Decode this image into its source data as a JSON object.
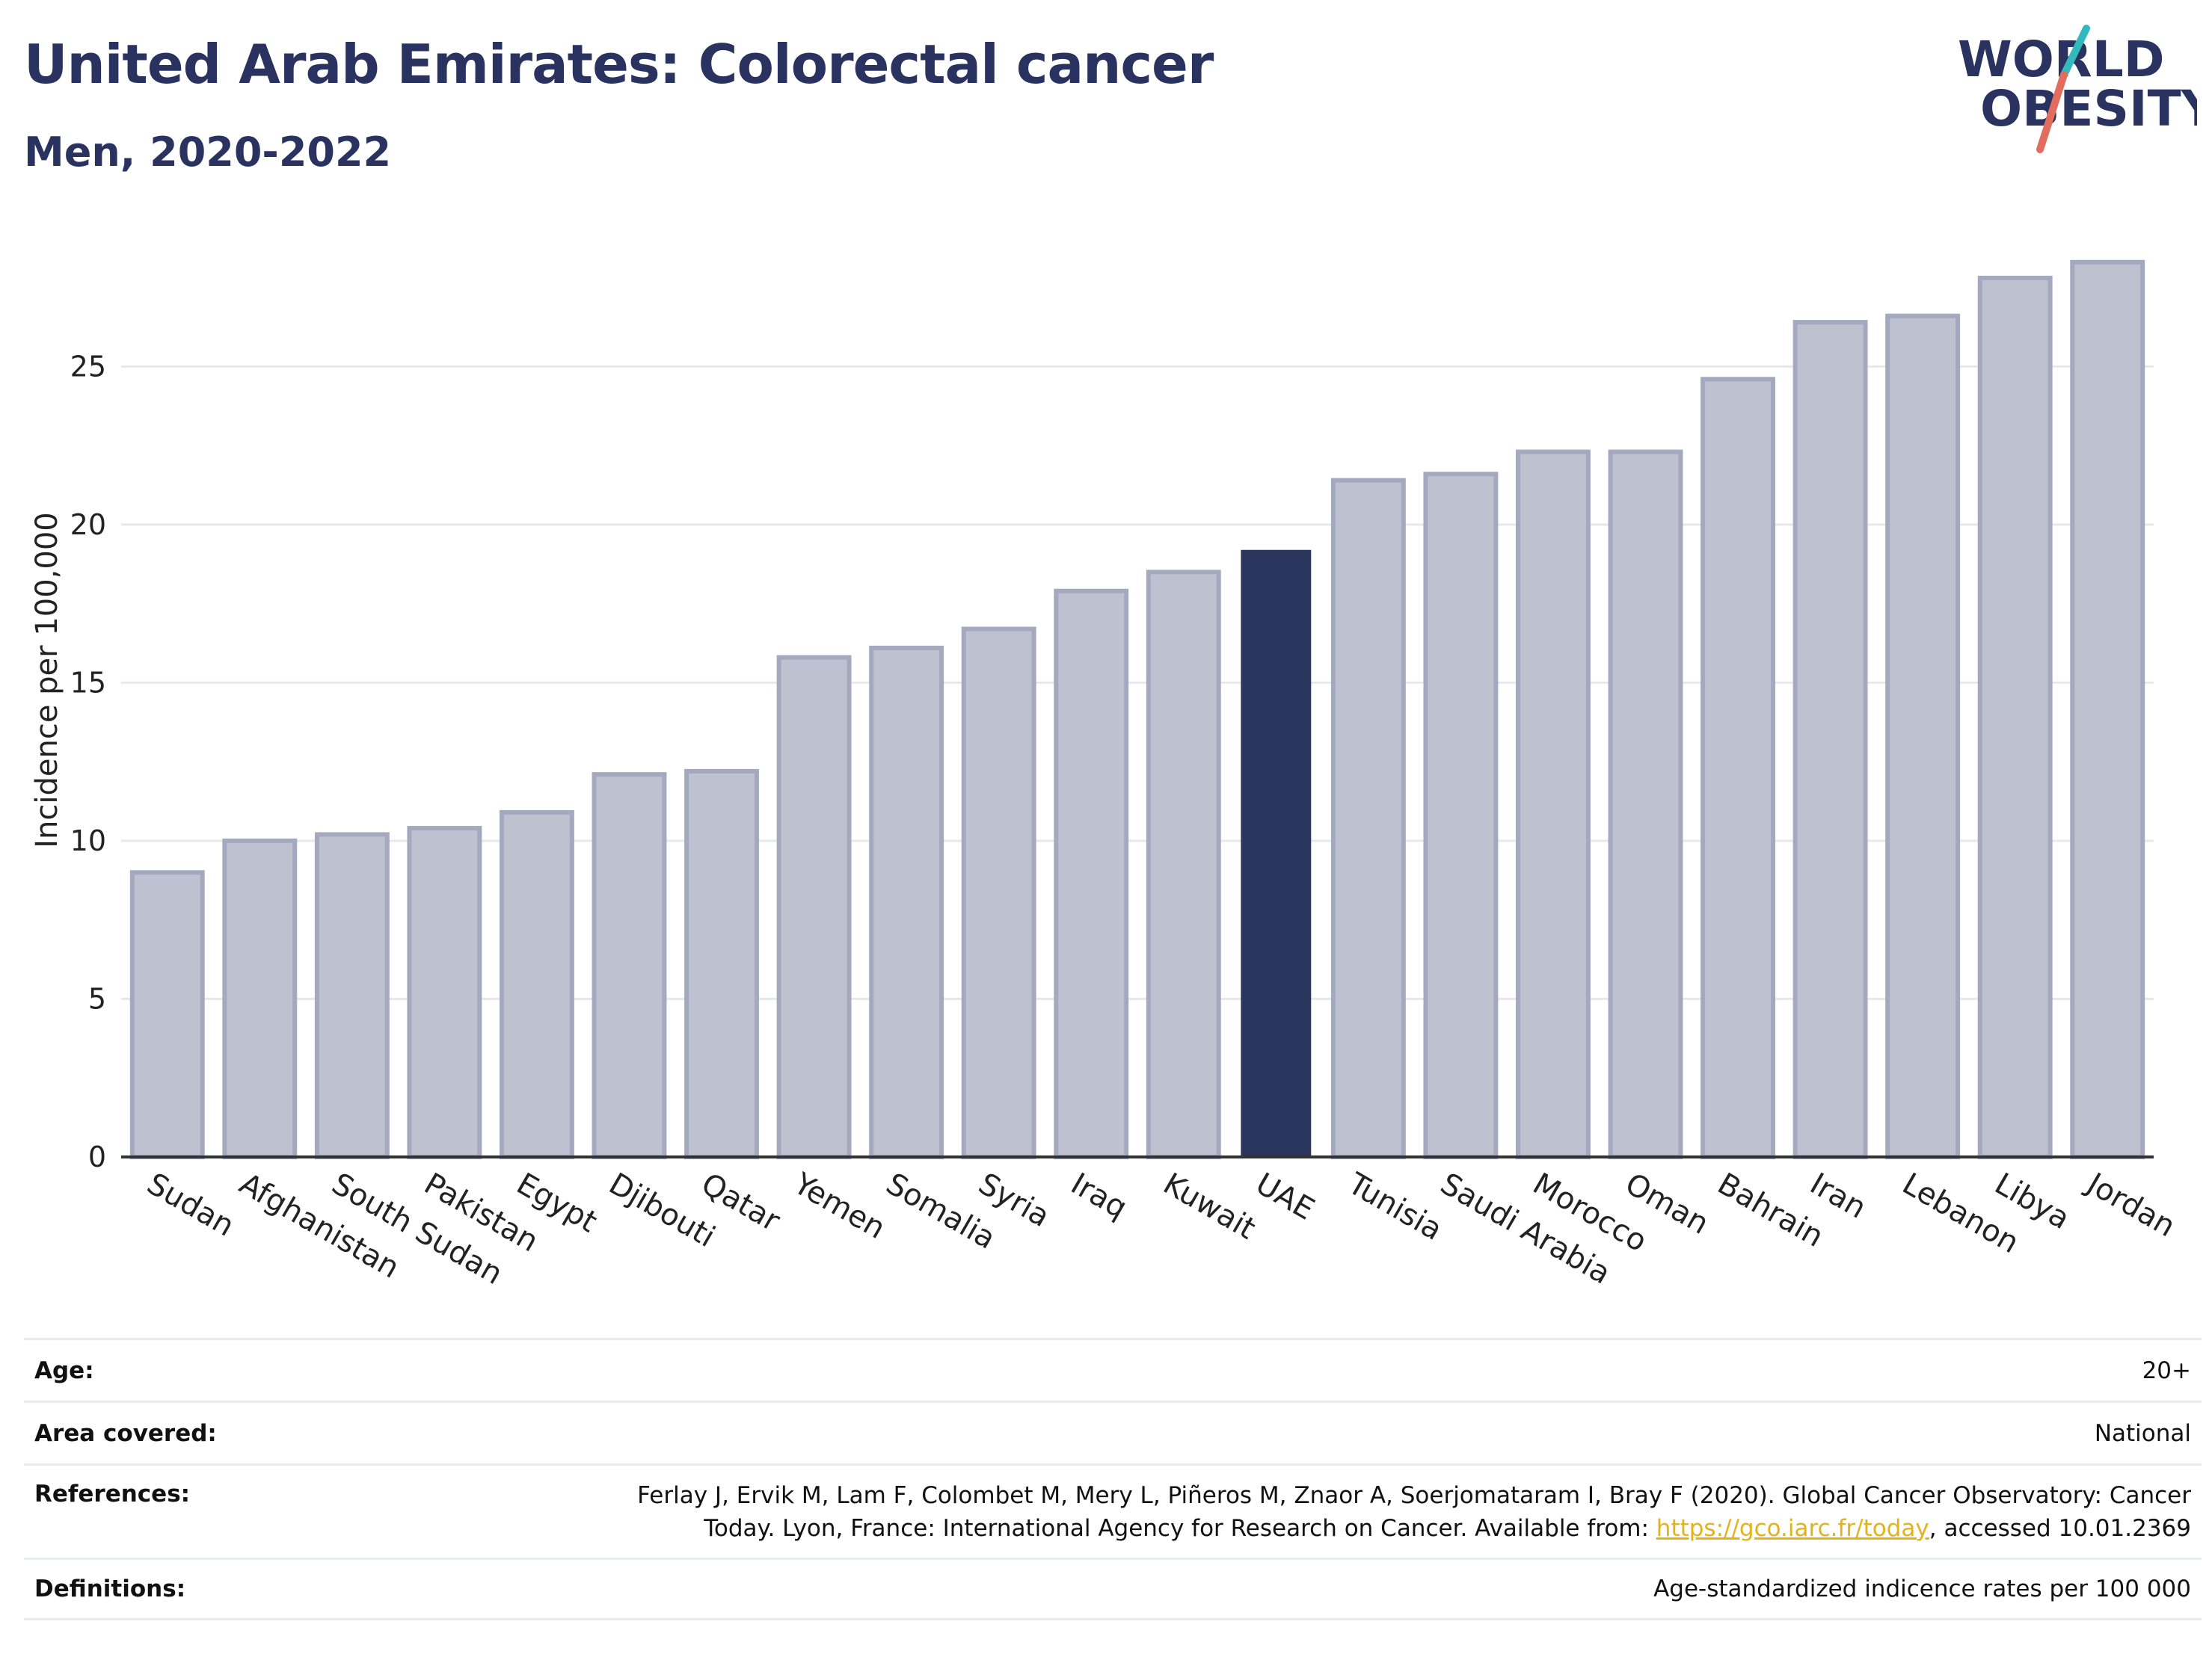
{
  "title": "United Arab Emirates: Colorectal cancer",
  "subtitle": "Men, 2020-2022",
  "logo": {
    "line1": "WORLD",
    "line2": "OBESITY"
  },
  "colors": {
    "highlight": "#2b365f",
    "bar_fill": "#bec1cf",
    "bar_stroke": "#a4a9bf",
    "title": "#2a3360",
    "accent_teal": "#33b8bd",
    "accent_red": "#e36d5d",
    "link": "#e2b31c"
  },
  "chart_data": {
    "type": "bar",
    "ylabel": "Incidence per 100,000",
    "xlabel": "",
    "ylim": [
      0,
      29.5
    ],
    "yticks": [
      0,
      5,
      10,
      15,
      20,
      25
    ],
    "grid": true,
    "highlight": "UAE",
    "categories": [
      "Sudan",
      "Afghanistan",
      "South Sudan",
      "Pakistan",
      "Egypt",
      "Djibouti",
      "Qatar",
      "Yemen",
      "Somalia",
      "Syria",
      "Iraq",
      "Kuwait",
      "UAE",
      "Tunisia",
      "Saudi Arabia",
      "Morocco",
      "Oman",
      "Bahrain",
      "Iran",
      "Lebanon",
      "Libya",
      "Jordan"
    ],
    "values": [
      9.0,
      10.0,
      10.2,
      10.4,
      10.9,
      12.1,
      12.2,
      15.8,
      16.1,
      16.7,
      17.9,
      18.5,
      19.2,
      21.4,
      21.6,
      22.3,
      22.3,
      24.6,
      26.4,
      26.6,
      27.8,
      28.3
    ]
  },
  "meta": {
    "age": {
      "label": "Age:",
      "value": "20+"
    },
    "area": {
      "label": "Area covered:",
      "value": "National"
    },
    "references": {
      "label": "References:",
      "line1": "Ferlay J, Ervik M, Lam F, Colombet M, Mery L, Piñeros M, Znaor A, Soerjomataram I, Bray F (2020). Global Cancer Observatory: Cancer",
      "line2_prefix": "Today. Lyon, France: International Agency for Research on Cancer. Available from: ",
      "link": "https://gco.iarc.fr/today",
      "line2_suffix": ", accessed 10.01.2369"
    },
    "definitions": {
      "label": "Definitions:",
      "value": "Age-standardized indicence rates per 100 000"
    }
  }
}
